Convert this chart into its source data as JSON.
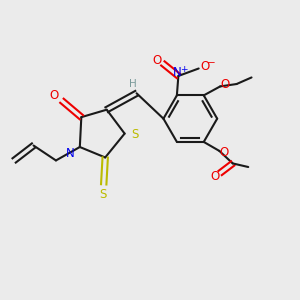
{
  "bg_color": "#ebebeb",
  "bond_color": "#1a1a1a",
  "N_color": "#0000ee",
  "S_color": "#bbbb00",
  "O_color": "#ee0000",
  "H_color": "#7a9a9a",
  "lw": 1.5,
  "fs": 8.5,
  "xlim": [
    0,
    10
  ],
  "ylim": [
    0,
    10
  ]
}
